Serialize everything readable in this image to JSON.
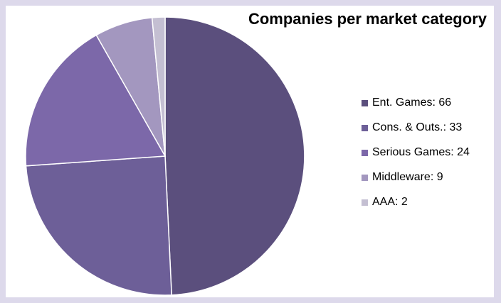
{
  "chart_data": {
    "type": "pie",
    "title": "Companies per market category",
    "categories": [
      "Ent. Games",
      "Cons. & Outs.",
      "Serious Games",
      "Middleware",
      "AAA"
    ],
    "values": [
      66,
      33,
      24,
      9,
      2
    ],
    "legend_labels": [
      "Ent. Games: 66",
      "Cons. & Outs.: 33",
      "Serious Games: 24",
      "Middleware: 9",
      "AAA: 2"
    ],
    "colors": [
      "#5b4f7d",
      "#6d5f98",
      "#7c68a9",
      "#a397bf",
      "#c4bfd2"
    ],
    "legend_position": "right",
    "start": "top, clockwise"
  }
}
